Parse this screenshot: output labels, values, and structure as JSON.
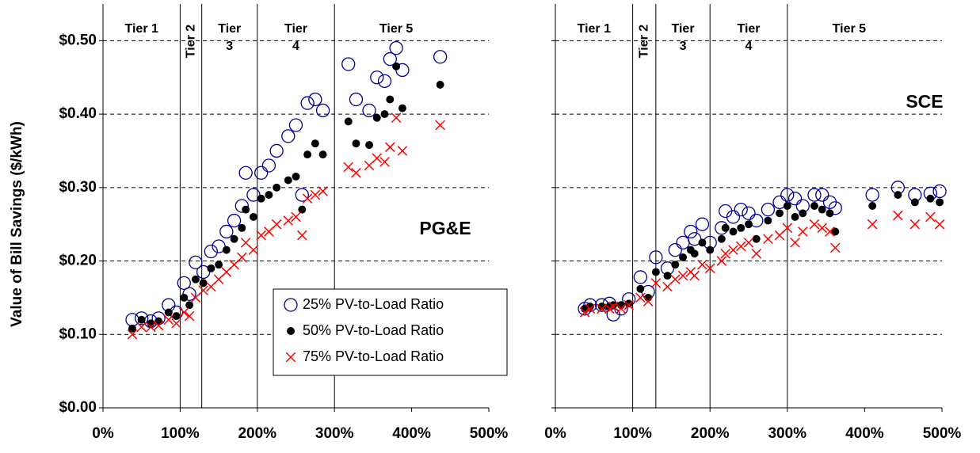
{
  "chart_data": [
    {
      "type": "scatter",
      "ylabel": "Value of Bill Savings ($/kWh)",
      "panel_label": "PG&E",
      "legend": "lower-right",
      "xlim": [
        0,
        500
      ],
      "ylim": [
        0,
        0.55
      ],
      "xticks": [
        {
          "value": 0,
          "label": "0%"
        },
        {
          "value": 100,
          "label": "100%"
        },
        {
          "value": 200,
          "label": "200%"
        },
        {
          "value": 300,
          "label": "300%"
        },
        {
          "value": 400,
          "label": "400%"
        },
        {
          "value": 500,
          "label": "500%"
        }
      ],
      "yticks": [
        {
          "value": 0,
          "label": "$0.00"
        },
        {
          "value": 0.1,
          "label": "$0.10"
        },
        {
          "value": 0.2,
          "label": "$0.20"
        },
        {
          "value": 0.3,
          "label": "$0.30"
        },
        {
          "value": 0.4,
          "label": "$0.40"
        },
        {
          "value": 0.5,
          "label": "$0.50"
        }
      ],
      "grid": true,
      "tier_boundaries": [
        100,
        128,
        200,
        300
      ],
      "tier_labels": [
        [
          "Tier 1"
        ],
        [
          "Tier 2"
        ],
        [
          "Tier",
          "3"
        ],
        [
          "Tier",
          "4"
        ],
        [
          "Tier 5"
        ]
      ],
      "x": [
        38,
        50,
        62,
        72,
        85,
        95,
        105,
        112,
        120,
        130,
        140,
        150,
        160,
        170,
        180,
        185,
        195,
        205,
        215,
        225,
        240,
        250,
        258,
        265,
        275,
        285,
        318,
        328,
        345,
        355,
        365,
        372,
        380,
        388,
        437
      ],
      "series": [
        {
          "name": "25% PV-to-Load Ratio",
          "color": "#000099",
          "marker": "circle-open",
          "values": [
            0.12,
            0.122,
            0.118,
            0.122,
            0.14,
            0.13,
            0.17,
            0.155,
            0.198,
            0.185,
            0.213,
            0.22,
            0.24,
            0.255,
            0.275,
            0.32,
            0.29,
            0.32,
            0.33,
            0.35,
            0.37,
            0.385,
            0.29,
            0.415,
            0.42,
            0.405,
            0.468,
            0.42,
            0.405,
            0.45,
            0.445,
            0.475,
            0.49,
            0.46,
            0.478
          ]
        },
        {
          "name": "50% PV-to-Load Ratio",
          "color": "#000000",
          "marker": "dot",
          "values": [
            0.108,
            0.12,
            0.115,
            0.118,
            0.13,
            0.125,
            0.15,
            0.14,
            0.175,
            0.17,
            0.19,
            0.195,
            0.215,
            0.23,
            0.245,
            0.27,
            0.26,
            0.285,
            0.29,
            0.3,
            0.31,
            0.315,
            0.27,
            0.345,
            0.36,
            0.345,
            0.39,
            0.36,
            0.358,
            0.395,
            0.4,
            0.42,
            0.465,
            0.408,
            0.44
          ]
        },
        {
          "name": "75% PV-to-Load Ratio",
          "color": "#ff0000",
          "marker": "x",
          "values": [
            0.1,
            0.11,
            0.11,
            0.112,
            0.12,
            0.115,
            0.13,
            0.125,
            0.15,
            0.16,
            0.165,
            0.175,
            0.185,
            0.195,
            0.205,
            0.225,
            0.215,
            0.235,
            0.24,
            0.25,
            0.255,
            0.26,
            0.235,
            0.285,
            0.29,
            0.295,
            0.328,
            0.32,
            0.33,
            0.34,
            0.335,
            0.355,
            0.395,
            0.35,
            0.385
          ]
        }
      ]
    },
    {
      "type": "scatter",
      "panel_label": "SCE",
      "xlim": [
        0,
        500
      ],
      "ylim": [
        0,
        0.55
      ],
      "xticks": [
        {
          "value": 0,
          "label": "0%"
        },
        {
          "value": 100,
          "label": "100%"
        },
        {
          "value": 200,
          "label": "200%"
        },
        {
          "value": 300,
          "label": "300%"
        },
        {
          "value": 400,
          "label": "400%"
        },
        {
          "value": 500,
          "label": "500%"
        }
      ],
      "yticks": [
        0,
        0.1,
        0.2,
        0.3,
        0.4,
        0.5
      ],
      "grid": true,
      "tier_boundaries": [
        100,
        130,
        200,
        300
      ],
      "tier_labels": [
        [
          "Tier 1"
        ],
        [
          "Tier 2"
        ],
        [
          "Tier",
          "3"
        ],
        [
          "Tier",
          "4"
        ],
        [
          "Tier 5"
        ]
      ],
      "x": [
        38,
        45,
        60,
        70,
        75,
        85,
        95,
        110,
        120,
        130,
        145,
        155,
        165,
        175,
        180,
        190,
        200,
        215,
        220,
        230,
        240,
        250,
        260,
        275,
        290,
        300,
        310,
        320,
        335,
        345,
        355,
        362,
        410,
        443,
        465,
        485,
        497
      ],
      "series": [
        {
          "color": "#000099",
          "marker": "circle-open",
          "values": [
            0.135,
            0.14,
            0.14,
            0.142,
            0.127,
            0.135,
            0.148,
            0.178,
            0.158,
            0.205,
            0.19,
            0.215,
            0.225,
            0.24,
            0.23,
            0.25,
            0.225,
            0.245,
            0.268,
            0.26,
            0.27,
            0.265,
            0.255,
            0.27,
            0.28,
            0.29,
            0.285,
            0.275,
            0.29,
            0.29,
            0.28,
            0.272,
            0.29,
            0.3,
            0.29,
            0.292,
            0.295
          ]
        },
        {
          "color": "#000000",
          "marker": "dot",
          "values": [
            0.135,
            0.138,
            0.138,
            0.138,
            0.14,
            0.14,
            0.142,
            0.162,
            0.15,
            0.185,
            0.18,
            0.195,
            0.205,
            0.215,
            0.21,
            0.225,
            0.215,
            0.23,
            0.245,
            0.24,
            0.245,
            0.25,
            0.23,
            0.255,
            0.265,
            0.275,
            0.26,
            0.265,
            0.275,
            0.27,
            0.265,
            0.24,
            0.275,
            0.29,
            0.28,
            0.285,
            0.28
          ]
        },
        {
          "color": "#ff0000",
          "marker": "x",
          "values": [
            0.13,
            0.135,
            0.135,
            0.135,
            0.138,
            0.135,
            0.14,
            0.15,
            0.145,
            0.17,
            0.165,
            0.175,
            0.18,
            0.185,
            0.18,
            0.195,
            0.19,
            0.2,
            0.21,
            0.215,
            0.22,
            0.225,
            0.21,
            0.23,
            0.235,
            0.245,
            0.225,
            0.24,
            0.25,
            0.245,
            0.24,
            0.218,
            0.25,
            0.262,
            0.25,
            0.26,
            0.25
          ]
        }
      ]
    }
  ]
}
